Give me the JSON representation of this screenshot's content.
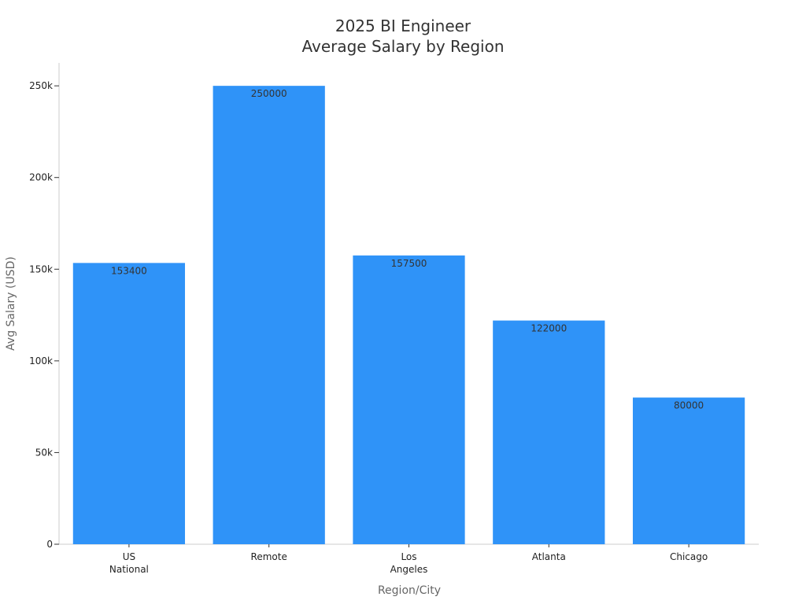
{
  "chart_data": {
    "type": "bar",
    "title": [
      "2025 BI Engineer",
      "Average Salary by Region"
    ],
    "categories": [
      [
        "US",
        "National"
      ],
      [
        "Remote"
      ],
      [
        "Los",
        "Angeles"
      ],
      [
        "Atlanta"
      ],
      [
        "Chicago"
      ]
    ],
    "values": [
      153400,
      250000,
      157500,
      122000,
      80000
    ],
    "value_labels": [
      "153400",
      "250000",
      "157500",
      "122000",
      "80000"
    ],
    "xlabel": "Region/City",
    "ylabel": "Avg Salary (USD)",
    "ylim": [
      0,
      262500
    ],
    "yticks": [
      0,
      50000,
      100000,
      150000,
      200000,
      250000
    ],
    "ytick_labels": [
      "0",
      "50k",
      "100k",
      "150k",
      "200k",
      "250k"
    ],
    "grid": false,
    "colors": {
      "bar": "#2f93f8",
      "axis": "#cccccc",
      "tick_text": "#222222"
    }
  }
}
